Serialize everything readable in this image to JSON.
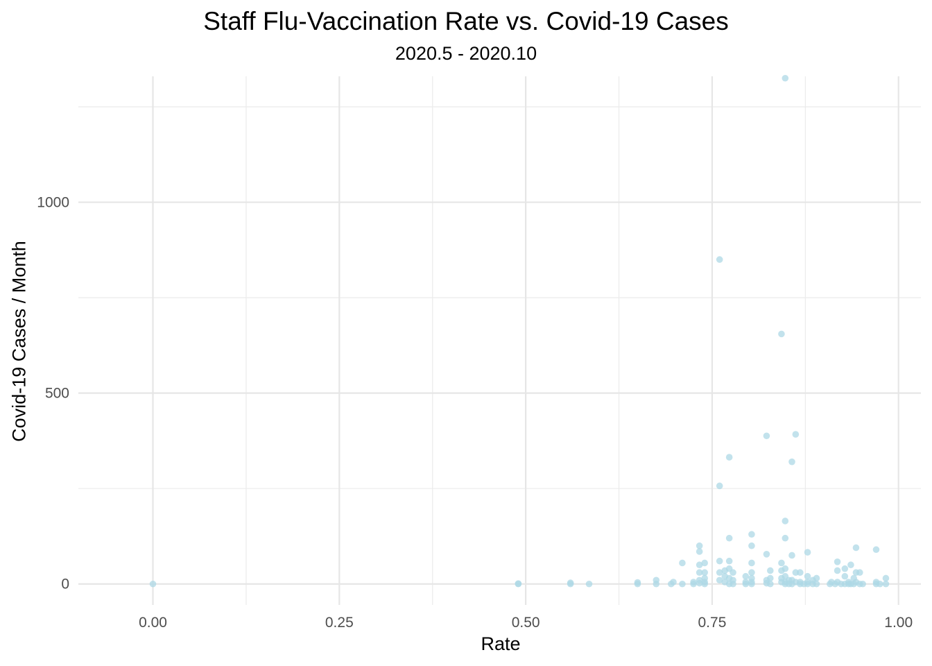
{
  "chart_data": {
    "type": "scatter",
    "title": "Staff Flu-Vaccination Rate vs. Covid-19 Cases",
    "subtitle": "2020.5 - 2020.10",
    "xlabel": "Rate",
    "ylabel": "Covid-19 Cases / Month",
    "xlim": [
      -0.1,
      1.03
    ],
    "ylim": [
      -55,
      1330
    ],
    "x_ticks": [
      0.0,
      0.25,
      0.5,
      0.75,
      1.0
    ],
    "x_tick_labels": [
      "0.00",
      "0.25",
      "0.50",
      "0.75",
      "1.00"
    ],
    "y_ticks": [
      0,
      500,
      1000
    ],
    "y_tick_labels": [
      "0",
      "500",
      "1000"
    ],
    "grid": true,
    "legend": "none",
    "point_color": "#add8e6",
    "points": [
      {
        "x": 0.0,
        "y": 0
      },
      {
        "x": 0.49,
        "y": 0
      },
      {
        "x": 0.49,
        "y": 1
      },
      {
        "x": 0.56,
        "y": 0
      },
      {
        "x": 0.56,
        "y": 3
      },
      {
        "x": 0.585,
        "y": 0
      },
      {
        "x": 0.65,
        "y": 0
      },
      {
        "x": 0.65,
        "y": 4
      },
      {
        "x": 0.675,
        "y": 0
      },
      {
        "x": 0.675,
        "y": 10
      },
      {
        "x": 0.695,
        "y": 0
      },
      {
        "x": 0.698,
        "y": 5
      },
      {
        "x": 0.71,
        "y": 0
      },
      {
        "x": 0.71,
        "y": 55
      },
      {
        "x": 0.725,
        "y": 0
      },
      {
        "x": 0.725,
        "y": 5
      },
      {
        "x": 0.733,
        "y": 100
      },
      {
        "x": 0.733,
        "y": 85
      },
      {
        "x": 0.733,
        "y": 50
      },
      {
        "x": 0.733,
        "y": 30
      },
      {
        "x": 0.733,
        "y": 10
      },
      {
        "x": 0.733,
        "y": 2
      },
      {
        "x": 0.74,
        "y": 55
      },
      {
        "x": 0.74,
        "y": 30
      },
      {
        "x": 0.74,
        "y": 15
      },
      {
        "x": 0.74,
        "y": 5
      },
      {
        "x": 0.74,
        "y": 0
      },
      {
        "x": 0.76,
        "y": 850
      },
      {
        "x": 0.76,
        "y": 257
      },
      {
        "x": 0.76,
        "y": 60
      },
      {
        "x": 0.76,
        "y": 30
      },
      {
        "x": 0.76,
        "y": 10
      },
      {
        "x": 0.767,
        "y": 35
      },
      {
        "x": 0.767,
        "y": 20
      },
      {
        "x": 0.767,
        "y": 5
      },
      {
        "x": 0.773,
        "y": 332
      },
      {
        "x": 0.773,
        "y": 120
      },
      {
        "x": 0.773,
        "y": 60
      },
      {
        "x": 0.773,
        "y": 40
      },
      {
        "x": 0.773,
        "y": 15
      },
      {
        "x": 0.773,
        "y": 0
      },
      {
        "x": 0.778,
        "y": 30
      },
      {
        "x": 0.778,
        "y": 10
      },
      {
        "x": 0.778,
        "y": 0
      },
      {
        "x": 0.795,
        "y": 20
      },
      {
        "x": 0.795,
        "y": 5
      },
      {
        "x": 0.795,
        "y": 0
      },
      {
        "x": 0.803,
        "y": 130
      },
      {
        "x": 0.803,
        "y": 100
      },
      {
        "x": 0.803,
        "y": 55
      },
      {
        "x": 0.803,
        "y": 30
      },
      {
        "x": 0.803,
        "y": 15
      },
      {
        "x": 0.803,
        "y": 5
      },
      {
        "x": 0.803,
        "y": 0
      },
      {
        "x": 0.823,
        "y": 388
      },
      {
        "x": 0.823,
        "y": 78
      },
      {
        "x": 0.823,
        "y": 10
      },
      {
        "x": 0.823,
        "y": 2
      },
      {
        "x": 0.828,
        "y": 35
      },
      {
        "x": 0.828,
        "y": 15
      },
      {
        "x": 0.828,
        "y": 0
      },
      {
        "x": 0.843,
        "y": 655
      },
      {
        "x": 0.843,
        "y": 55
      },
      {
        "x": 0.843,
        "y": 35
      },
      {
        "x": 0.843,
        "y": 15
      },
      {
        "x": 0.843,
        "y": 5
      },
      {
        "x": 0.848,
        "y": 1325
      },
      {
        "x": 0.848,
        "y": 165
      },
      {
        "x": 0.848,
        "y": 120
      },
      {
        "x": 0.848,
        "y": 40
      },
      {
        "x": 0.848,
        "y": 20
      },
      {
        "x": 0.848,
        "y": 5
      },
      {
        "x": 0.848,
        "y": 0
      },
      {
        "x": 0.853,
        "y": 10
      },
      {
        "x": 0.853,
        "y": 0
      },
      {
        "x": 0.857,
        "y": 320
      },
      {
        "x": 0.857,
        "y": 75
      },
      {
        "x": 0.857,
        "y": 10
      },
      {
        "x": 0.857,
        "y": 0
      },
      {
        "x": 0.862,
        "y": 392
      },
      {
        "x": 0.862,
        "y": 30
      },
      {
        "x": 0.862,
        "y": 5
      },
      {
        "x": 0.868,
        "y": 30
      },
      {
        "x": 0.868,
        "y": 5
      },
      {
        "x": 0.868,
        "y": 0
      },
      {
        "x": 0.873,
        "y": 0
      },
      {
        "x": 0.878,
        "y": 83
      },
      {
        "x": 0.878,
        "y": 20
      },
      {
        "x": 0.878,
        "y": 5
      },
      {
        "x": 0.878,
        "y": 0
      },
      {
        "x": 0.885,
        "y": 10
      },
      {
        "x": 0.885,
        "y": 0
      },
      {
        "x": 0.89,
        "y": 15
      },
      {
        "x": 0.89,
        "y": 0
      },
      {
        "x": 0.908,
        "y": 0
      },
      {
        "x": 0.91,
        "y": 5
      },
      {
        "x": 0.915,
        "y": 0
      },
      {
        "x": 0.918,
        "y": 58
      },
      {
        "x": 0.918,
        "y": 35
      },
      {
        "x": 0.918,
        "y": 5
      },
      {
        "x": 0.923,
        "y": 0
      },
      {
        "x": 0.928,
        "y": 40
      },
      {
        "x": 0.928,
        "y": 20
      },
      {
        "x": 0.928,
        "y": 0
      },
      {
        "x": 0.933,
        "y": 5
      },
      {
        "x": 0.933,
        "y": 0
      },
      {
        "x": 0.936,
        "y": 50
      },
      {
        "x": 0.936,
        "y": 0
      },
      {
        "x": 0.94,
        "y": 15
      },
      {
        "x": 0.94,
        "y": 0
      },
      {
        "x": 0.943,
        "y": 95
      },
      {
        "x": 0.943,
        "y": 30
      },
      {
        "x": 0.943,
        "y": 5
      },
      {
        "x": 0.948,
        "y": 30
      },
      {
        "x": 0.948,
        "y": 0
      },
      {
        "x": 0.952,
        "y": 0
      },
      {
        "x": 0.97,
        "y": 90
      },
      {
        "x": 0.97,
        "y": 5
      },
      {
        "x": 0.97,
        "y": 0
      },
      {
        "x": 0.975,
        "y": 0
      },
      {
        "x": 0.983,
        "y": 15
      },
      {
        "x": 0.983,
        "y": 0
      }
    ]
  }
}
